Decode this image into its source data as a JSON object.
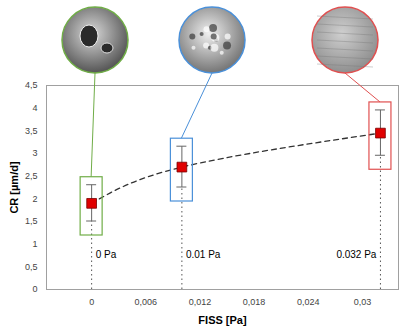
{
  "chart_data": {
    "type": "scatter",
    "x_label": "FISS [Pa]",
    "y_label": "CR [µm/d]",
    "x": [
      0,
      0.01,
      0.032
    ],
    "values": [
      1.9,
      2.7,
      3.45
    ],
    "errors": [
      0.4,
      0.45,
      0.5
    ],
    "point_labels": [
      "0 Pa",
      "0.01 Pa",
      "0.032 Pa"
    ],
    "color": "#e00000",
    "colors": [
      "#70ad47",
      "#4a90d9",
      "#e05050"
    ],
    "marker": "square",
    "line_style": "dashed",
    "xlim": [
      -0.005,
      0.034
    ],
    "xticks": [
      0,
      {
        "value": 0.006,
        "label": "0,006"
      },
      {
        "value": 0.012,
        "label": "0,012"
      },
      {
        "value": 0.018,
        "label": "0,018"
      },
      {
        "value": 0.024,
        "label": "0,024"
      },
      {
        "value": 0.03,
        "label": "0,03"
      }
    ],
    "ylim": [
      0,
      4.5
    ],
    "yticks": [
      0,
      {
        "value": 0.5,
        "label": "0,5"
      },
      1,
      {
        "value": 1.5,
        "label": "1,5"
      },
      2,
      {
        "value": 2.5,
        "label": "2,5"
      },
      3,
      {
        "value": 3.5,
        "label": "3,5"
      },
      4,
      {
        "value": 4.5,
        "label": "4,5"
      }
    ],
    "grid": false
  }
}
